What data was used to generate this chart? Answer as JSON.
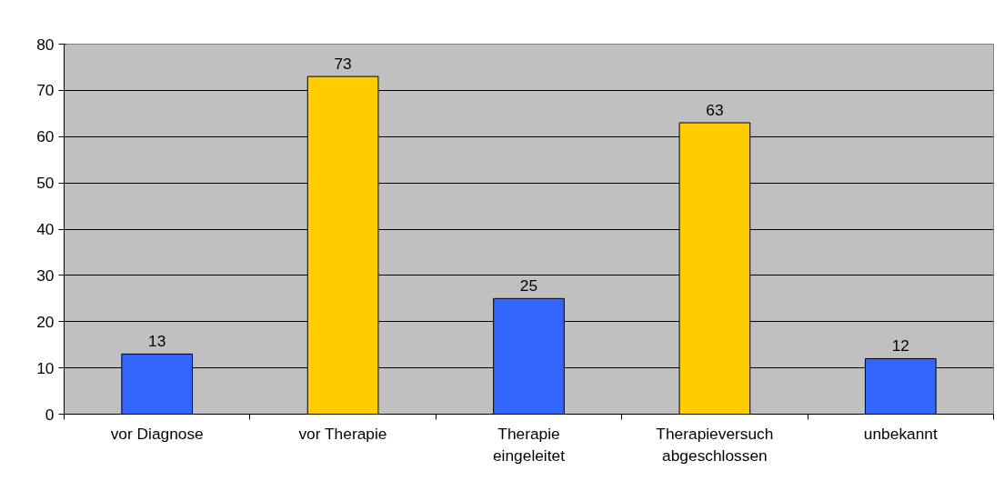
{
  "chart_data": {
    "type": "bar",
    "categories": [
      "vor Diagnose",
      "vor Therapie",
      "Therapie\neingeleitet",
      "Therapieversuch\nabgeschlossen",
      "unbekannt"
    ],
    "values": [
      13,
      73,
      25,
      63,
      12
    ],
    "colors": [
      "#3366ff",
      "#ffcc00",
      "#3366ff",
      "#ffcc00",
      "#3366ff"
    ],
    "ylim": [
      0,
      80
    ],
    "yticks": [
      0,
      10,
      20,
      30,
      40,
      50,
      60,
      70,
      80
    ],
    "grid": "y",
    "data_labels": true
  }
}
